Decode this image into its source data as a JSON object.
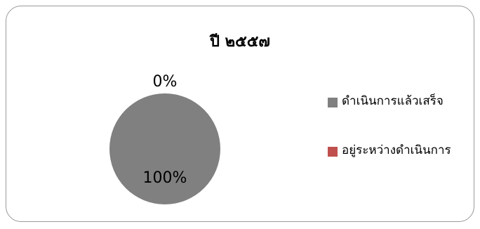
{
  "chart_data": {
    "type": "pie",
    "title": "ปี ๒๕๕๗",
    "categories": [
      "ดำเนินการแล้วเสร็จ",
      "อยู่ระหว่างดำเนินการ"
    ],
    "values": [
      100,
      0
    ],
    "data_labels": [
      "100%",
      "0%"
    ],
    "colors": [
      "#808080",
      "#c0504d"
    ],
    "legend": {
      "position": "right",
      "entries": [
        "ดำเนินการแล้วเสร็จ",
        "อยู่ระหว่างดำเนินการ"
      ]
    }
  }
}
